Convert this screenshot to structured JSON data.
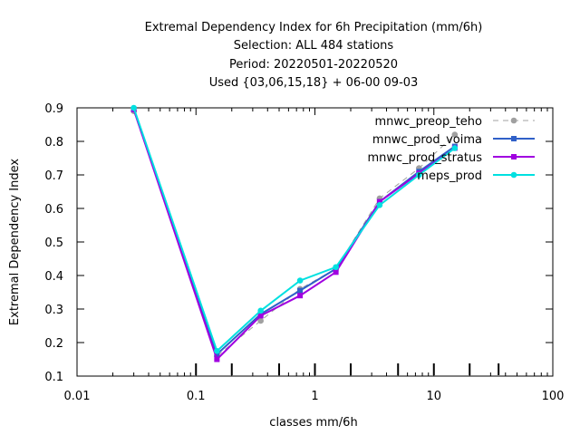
{
  "chart_data": {
    "type": "line",
    "title_lines": [
      "Extremal Dependency Index  for 6h Precipitation (mm/6h)",
      "Selection: ALL    484 stations",
      "Period: 20220501-20220520",
      "Used {03,06,15,18} + 06-00 09-03"
    ],
    "xlabel": "classes mm/6h",
    "ylabel": "Extremal Dependency Index",
    "x_scale": "log",
    "xlim": [
      0.01,
      100
    ],
    "ylim": [
      0.1,
      0.9
    ],
    "x_ticks": [
      0.01,
      0.1,
      1,
      10,
      100
    ],
    "x_tick_labels": [
      "0.01",
      "0.1",
      "1",
      "10",
      "100"
    ],
    "y_ticks": [
      0.1,
      0.2,
      0.3,
      0.4,
      0.5,
      0.6,
      0.7,
      0.8,
      0.9
    ],
    "y_tick_labels": [
      "0.1",
      "0.2",
      "0.3",
      "0.4",
      "0.5",
      "0.6",
      "0.7",
      "0.8",
      "0.9"
    ],
    "class_threshold_marks": [
      0.1,
      0.2,
      0.5,
      1,
      2,
      5,
      10,
      20,
      35
    ],
    "legend_position": "top-right",
    "series": [
      {
        "name": "mnwc_preop_teho",
        "color": "#a0a0a0",
        "dashed": true,
        "marker": "circle",
        "x": [
          0.03,
          0.15,
          0.35,
          0.75,
          1.5,
          3.5,
          7.5,
          15
        ],
        "y": [
          0.89,
          0.16,
          0.265,
          0.36,
          0.42,
          0.63,
          0.72,
          0.82
        ]
      },
      {
        "name": "mnwc_prod_voima",
        "color": "#3060c8",
        "dashed": false,
        "marker": "square",
        "x": [
          0.03,
          0.15,
          0.35,
          0.75,
          1.5,
          3.5,
          7.5,
          15
        ],
        "y": [
          0.895,
          0.165,
          0.285,
          0.355,
          0.42,
          0.62,
          0.71,
          0.785
        ]
      },
      {
        "name": "mnwc_prod_stratus",
        "color": "#a000e0",
        "dashed": false,
        "marker": "square",
        "x": [
          0.03,
          0.15,
          0.35,
          0.75,
          1.5,
          3.5,
          7.5,
          15
        ],
        "y": [
          0.895,
          0.15,
          0.28,
          0.34,
          0.41,
          0.62,
          0.705,
          0.78
        ]
      },
      {
        "name": "meps_prod",
        "color": "#00e0e0",
        "dashed": false,
        "marker": "circle",
        "x": [
          0.03,
          0.15,
          0.35,
          0.75,
          1.5,
          3.5,
          7.5,
          15
        ],
        "y": [
          0.9,
          0.175,
          0.295,
          0.385,
          0.425,
          0.61,
          0.7,
          0.78
        ]
      }
    ]
  }
}
